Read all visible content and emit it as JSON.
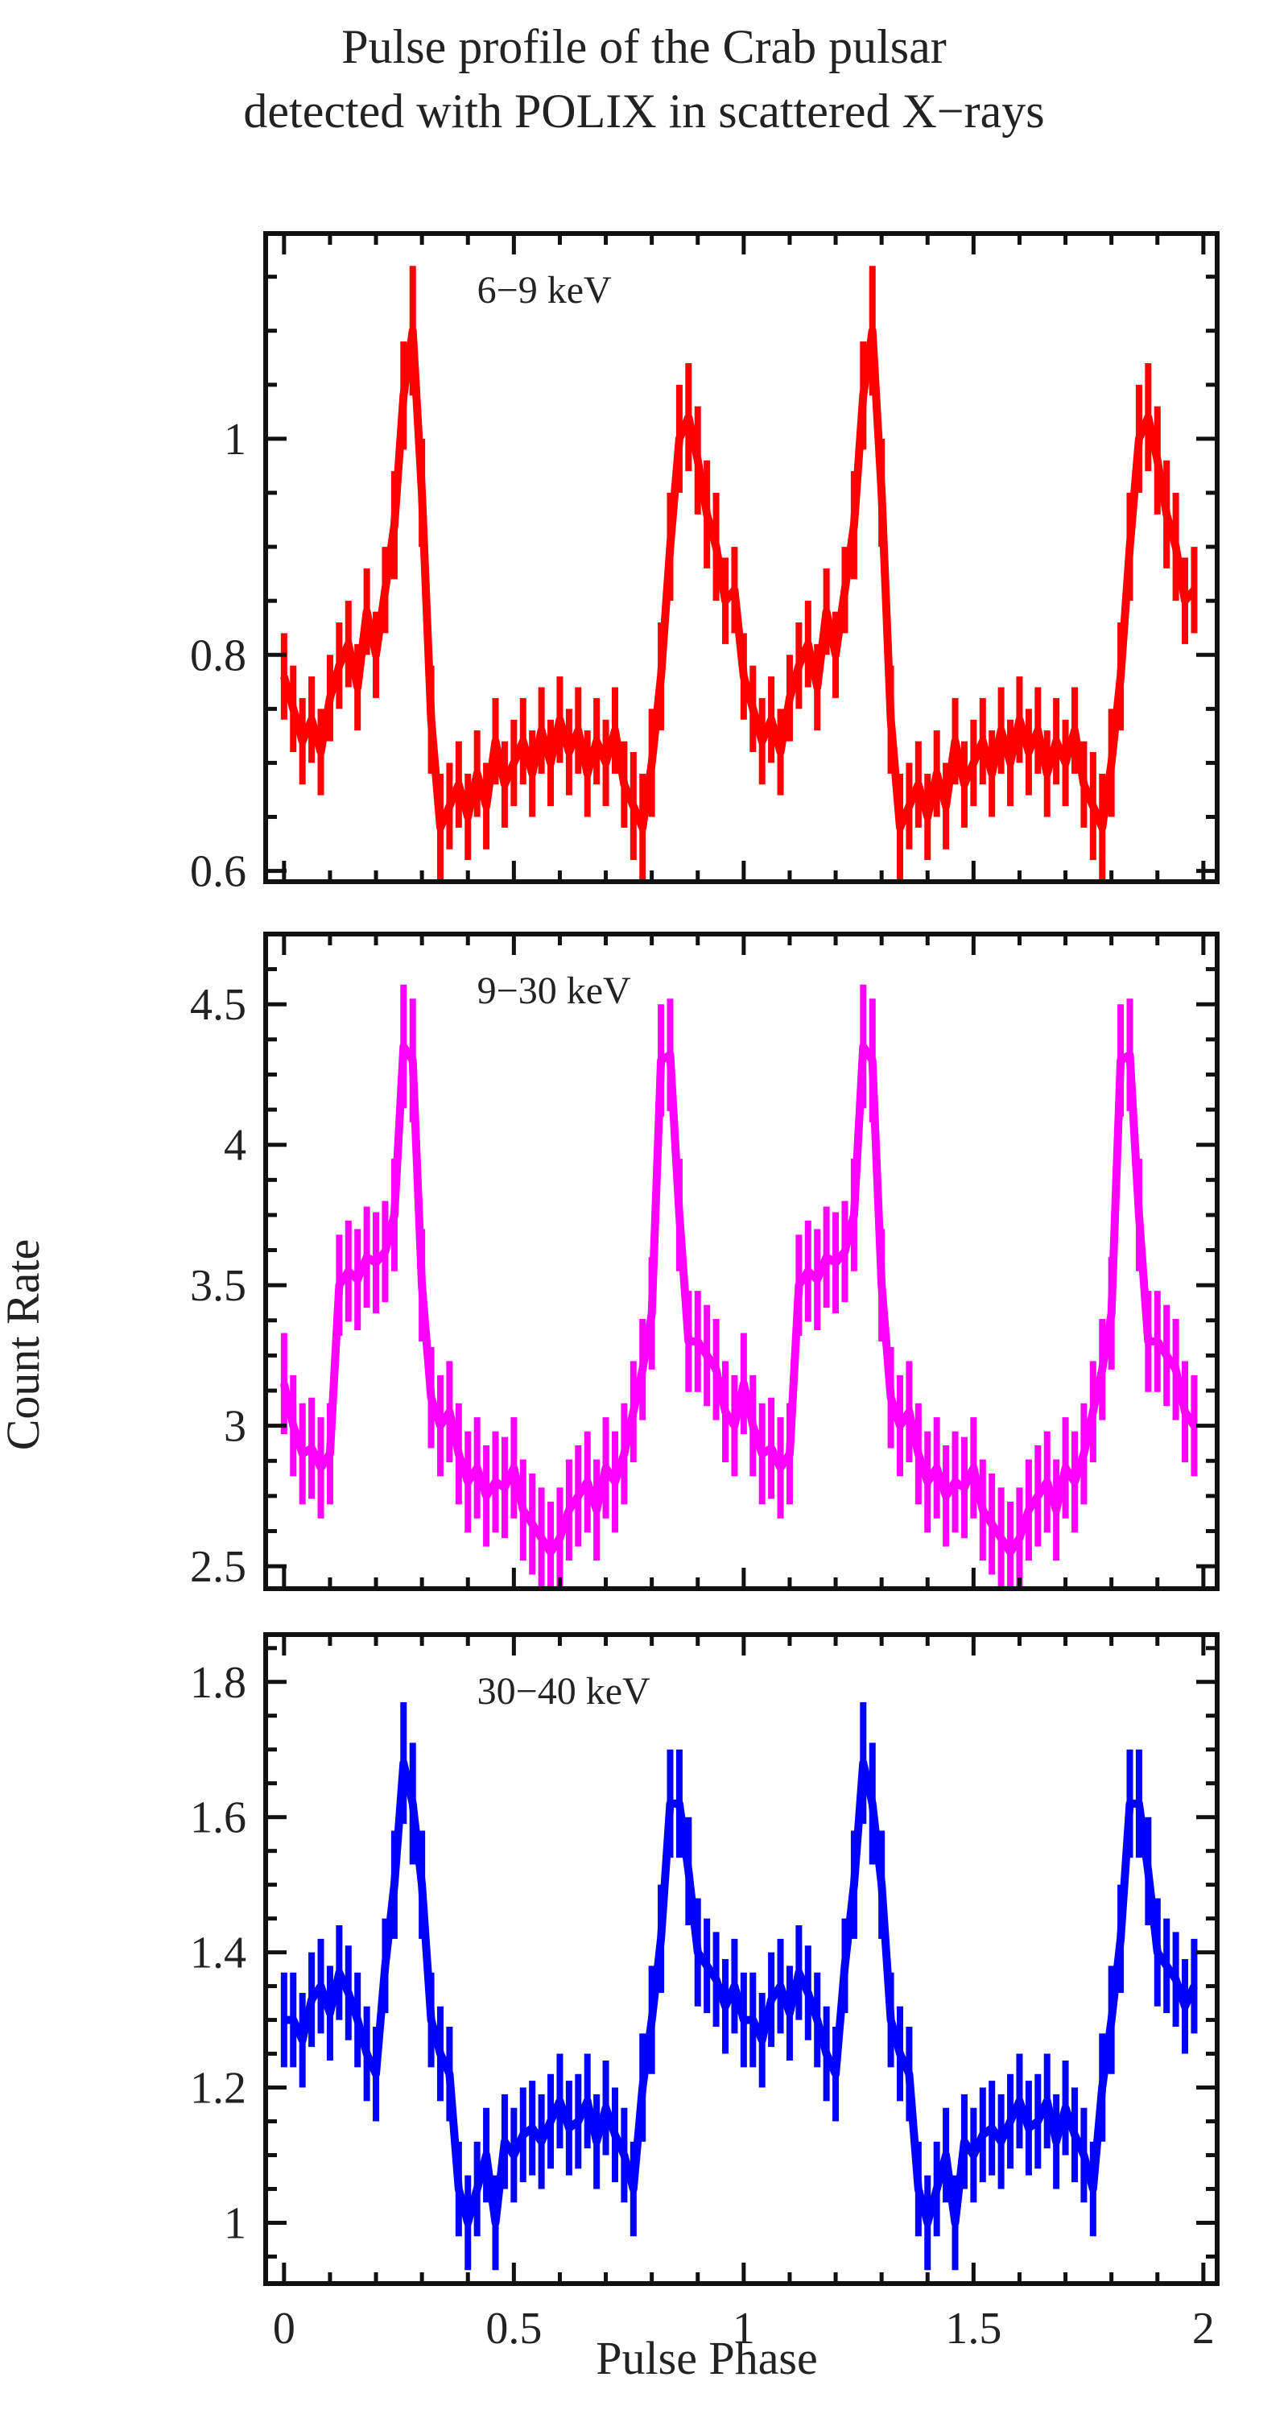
{
  "figure": {
    "title_lines": [
      "Pulse profile of the Crab pulsar",
      "detected with POLIX in scattered X−rays"
    ],
    "xlabel": "Pulse Phase",
    "ylabel": "Count Rate"
  },
  "chart_data": [
    {
      "type": "line",
      "title": "Pulse profile of the Crab pulsar detected with POLIX in scattered X−rays",
      "band_label": "6−9 keV",
      "color": "#ff0000",
      "xlabel": "Pulse Phase",
      "ylabel": "Count Rate",
      "xlim": [
        -0.04,
        2.03
      ],
      "ylim": [
        0.59,
        1.19
      ],
      "x_ticks": [
        0,
        0.5,
        1,
        1.5,
        2
      ],
      "x_tick_labels": [
        "0",
        "0.5",
        "1",
        "1.5",
        "2"
      ],
      "y_ticks": [
        0.6,
        0.8,
        1
      ],
      "y_tick_labels": [
        "0.6",
        "0.8",
        "1"
      ],
      "x": [
        0,
        0.02,
        0.04,
        0.06,
        0.08,
        0.1,
        0.12,
        0.14,
        0.16,
        0.18,
        0.2,
        0.22,
        0.24,
        0.26,
        0.28,
        0.3,
        0.32,
        0.34,
        0.36,
        0.38,
        0.4,
        0.42,
        0.44,
        0.46,
        0.48,
        0.5,
        0.52,
        0.54,
        0.56,
        0.58,
        0.6,
        0.62,
        0.64,
        0.66,
        0.68,
        0.7,
        0.72,
        0.74,
        0.76,
        0.78,
        0.8,
        0.82,
        0.84,
        0.86,
        0.88,
        0.9,
        0.92,
        0.94,
        0.96,
        0.98
      ],
      "values": [
        0.78,
        0.75,
        0.72,
        0.74,
        0.71,
        0.76,
        0.79,
        0.81,
        0.77,
        0.84,
        0.8,
        0.86,
        0.92,
        1.04,
        1.1,
        0.95,
        0.74,
        0.64,
        0.66,
        0.68,
        0.65,
        0.69,
        0.66,
        0.72,
        0.68,
        0.7,
        0.72,
        0.69,
        0.73,
        0.7,
        0.74,
        0.71,
        0.73,
        0.69,
        0.72,
        0.7,
        0.73,
        0.68,
        0.66,
        0.64,
        0.7,
        0.78,
        0.9,
        1.0,
        1.02,
        0.98,
        0.93,
        0.9,
        0.85,
        0.86
      ],
      "errors": [
        0.04,
        0.04,
        0.04,
        0.04,
        0.04,
        0.04,
        0.04,
        0.04,
        0.04,
        0.04,
        0.04,
        0.04,
        0.05,
        0.05,
        0.06,
        0.05,
        0.05,
        0.05,
        0.04,
        0.04,
        0.04,
        0.04,
        0.04,
        0.04,
        0.04,
        0.04,
        0.04,
        0.04,
        0.04,
        0.04,
        0.04,
        0.04,
        0.04,
        0.04,
        0.04,
        0.04,
        0.04,
        0.04,
        0.05,
        0.05,
        0.05,
        0.05,
        0.05,
        0.05,
        0.05,
        0.05,
        0.05,
        0.05,
        0.04,
        0.04
      ],
      "cycles": 2
    },
    {
      "type": "line",
      "band_label": "9−30 keV",
      "color": "#ff00ff",
      "xlabel": "Pulse Phase",
      "ylabel": "Count Rate",
      "xlim": [
        -0.04,
        2.03
      ],
      "ylim": [
        2.42,
        4.75
      ],
      "x_ticks": [
        0,
        0.5,
        1,
        1.5,
        2
      ],
      "x_tick_labels": [
        "0",
        "0.5",
        "1",
        "1.5",
        "2"
      ],
      "y_ticks": [
        2.5,
        3,
        3.5,
        4,
        4.5
      ],
      "y_tick_labels": [
        "2.5",
        "3",
        "3.5",
        "4",
        "4.5"
      ],
      "x": [
        0,
        0.02,
        0.04,
        0.06,
        0.08,
        0.1,
        0.12,
        0.14,
        0.16,
        0.18,
        0.2,
        0.22,
        0.24,
        0.26,
        0.28,
        0.3,
        0.32,
        0.34,
        0.36,
        0.38,
        0.4,
        0.42,
        0.44,
        0.46,
        0.48,
        0.5,
        0.52,
        0.54,
        0.56,
        0.58,
        0.6,
        0.62,
        0.64,
        0.66,
        0.68,
        0.7,
        0.72,
        0.74,
        0.76,
        0.78,
        0.8,
        0.82,
        0.84,
        0.86,
        0.88,
        0.9,
        0.92,
        0.94,
        0.96,
        0.98
      ],
      "values": [
        3.15,
        3.0,
        2.9,
        2.92,
        2.85,
        2.9,
        3.5,
        3.55,
        3.52,
        3.6,
        3.58,
        3.62,
        3.75,
        4.35,
        4.3,
        3.5,
        3.1,
        3.0,
        3.05,
        2.9,
        2.8,
        2.85,
        2.75,
        2.8,
        2.78,
        2.85,
        2.7,
        2.65,
        2.6,
        2.55,
        2.6,
        2.7,
        2.75,
        2.8,
        2.7,
        2.85,
        2.8,
        2.9,
        3.05,
        3.2,
        3.4,
        4.3,
        4.32,
        3.75,
        3.3,
        3.3,
        3.25,
        3.2,
        3.05,
        3.0
      ],
      "errors": [
        0.18,
        0.18,
        0.18,
        0.18,
        0.18,
        0.18,
        0.18,
        0.18,
        0.18,
        0.18,
        0.18,
        0.18,
        0.2,
        0.22,
        0.22,
        0.2,
        0.18,
        0.18,
        0.18,
        0.18,
        0.18,
        0.18,
        0.18,
        0.18,
        0.18,
        0.18,
        0.18,
        0.18,
        0.18,
        0.18,
        0.18,
        0.18,
        0.18,
        0.18,
        0.18,
        0.18,
        0.18,
        0.18,
        0.18,
        0.18,
        0.2,
        0.2,
        0.2,
        0.2,
        0.18,
        0.18,
        0.18,
        0.18,
        0.18,
        0.18
      ],
      "cycles": 2
    },
    {
      "type": "line",
      "band_label": "30−40 keV",
      "color": "#0000ff",
      "xlabel": "Pulse Phase",
      "ylabel": "Count Rate",
      "xlim": [
        -0.04,
        2.03
      ],
      "ylim": [
        0.91,
        1.87
      ],
      "x_ticks": [
        0,
        0.5,
        1,
        1.5,
        2
      ],
      "x_tick_labels": [
        "0",
        "0.5",
        "1",
        "1.5",
        "2"
      ],
      "y_ticks": [
        1,
        1.2,
        1.4,
        1.6,
        1.8
      ],
      "y_tick_labels": [
        "1",
        "1.2",
        "1.4",
        "1.6",
        "1.8"
      ],
      "x": [
        0,
        0.02,
        0.04,
        0.06,
        0.08,
        0.1,
        0.12,
        0.14,
        0.16,
        0.18,
        0.2,
        0.22,
        0.24,
        0.26,
        0.28,
        0.3,
        0.32,
        0.34,
        0.36,
        0.38,
        0.4,
        0.42,
        0.44,
        0.46,
        0.48,
        0.5,
        0.52,
        0.54,
        0.56,
        0.58,
        0.6,
        0.62,
        0.64,
        0.66,
        0.68,
        0.7,
        0.72,
        0.74,
        0.76,
        0.78,
        0.8,
        0.82,
        0.84,
        0.86,
        0.88,
        0.9,
        0.92,
        0.94,
        0.96,
        0.98
      ],
      "values": [
        1.3,
        1.3,
        1.27,
        1.33,
        1.35,
        1.31,
        1.37,
        1.34,
        1.3,
        1.25,
        1.22,
        1.38,
        1.5,
        1.68,
        1.62,
        1.5,
        1.3,
        1.25,
        1.22,
        1.05,
        1.0,
        1.05,
        1.1,
        1.0,
        1.12,
        1.1,
        1.13,
        1.14,
        1.12,
        1.15,
        1.18,
        1.14,
        1.15,
        1.18,
        1.12,
        1.17,
        1.13,
        1.1,
        1.05,
        1.2,
        1.3,
        1.42,
        1.62,
        1.62,
        1.52,
        1.4,
        1.38,
        1.36,
        1.32,
        1.35
      ],
      "errors": [
        0.07,
        0.07,
        0.07,
        0.07,
        0.07,
        0.07,
        0.07,
        0.07,
        0.07,
        0.07,
        0.07,
        0.07,
        0.08,
        0.09,
        0.09,
        0.08,
        0.07,
        0.07,
        0.07,
        0.07,
        0.07,
        0.07,
        0.07,
        0.07,
        0.07,
        0.07,
        0.07,
        0.07,
        0.07,
        0.07,
        0.07,
        0.07,
        0.07,
        0.07,
        0.07,
        0.07,
        0.07,
        0.07,
        0.07,
        0.08,
        0.08,
        0.08,
        0.08,
        0.08,
        0.08,
        0.08,
        0.07,
        0.07,
        0.07,
        0.07
      ],
      "cycles": 2
    }
  ]
}
